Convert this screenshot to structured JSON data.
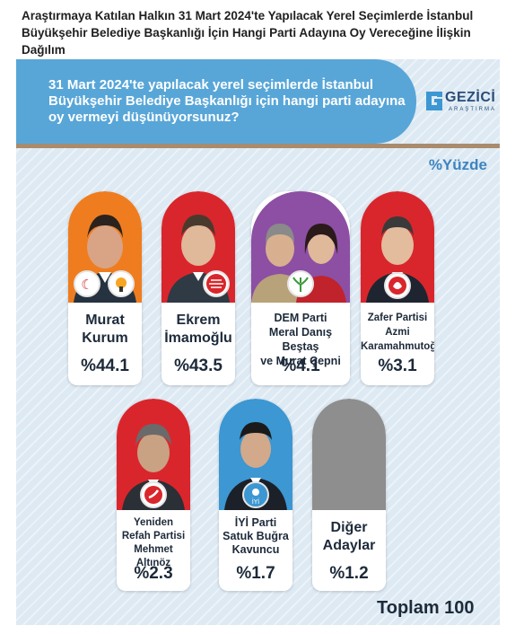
{
  "header": {
    "title": "Araştırmaya Katılan Halkın 31 Mart 2024'te Yapılacak Yerel Seçimlerde İstanbul Büyükşehir Belediye Başkanlığı İçin Hangi Parti Adayına Oy Vereceğine İlişkin Dağılım"
  },
  "question": "31 Mart 2024'te yapılacak yerel seçimlerde İstanbul Büyükşehir Belediye Başkanlığı için hangi parti adayına oy vermeyi düşünüyorsunuz?",
  "logo": {
    "name": "GEZİCİ",
    "sub": "ARAŞTIRMA"
  },
  "unit_label": "%Yüzde",
  "total_label": "Toplam 100",
  "colors": {
    "orange": "#ef7d1f",
    "red": "#d9262c",
    "purple": "#8c4fa3",
    "blue": "#3c97d3",
    "gray": "#8e8e8e",
    "header_blue": "#58a6d8"
  },
  "chart_data": {
    "type": "bar",
    "title": "31 Mart 2024'te yapılacak yerel seçimlerde İstanbul Büyükşehir Belediye Başkanlığı için hangi parti adayına oy vermeyi düşünüyorsunuz?",
    "unit": "%Yüzde",
    "candidates": [
      {
        "party": "",
        "name": "Murat Kurum",
        "line1": "Murat",
        "line2": "Kurum",
        "line3": "",
        "value": 44.1,
        "value_label": "%44.1",
        "color": "orange"
      },
      {
        "party": "",
        "name": "Ekrem İmamoğlu",
        "line1": "Ekrem",
        "line2": "İmamoğlu",
        "line3": "",
        "value": 43.5,
        "value_label": "%43.5",
        "color": "red"
      },
      {
        "party": "DEM Parti",
        "name": "Meral Danış Beştaş ve Murat Çepni",
        "line1": "DEM Parti",
        "line2": "Meral Danış Beştaş",
        "line3": "ve Murat Çepni",
        "value": 4.1,
        "value_label": "%4.1",
        "color": "purple"
      },
      {
        "party": "Zafer Partisi",
        "name": "Azmi Karamahmutoğlu",
        "line1": "Zafer Partisi",
        "line2": "Azmi",
        "line3": "Karamahmutoğlu",
        "value": 3.1,
        "value_label": "%3.1",
        "color": "red"
      },
      {
        "party": "Yeniden Refah Partisi",
        "name": "Mehmet Altınöz",
        "line1": "Yeniden",
        "line2": "Refah Partisi",
        "line3": "Mehmet Altınöz",
        "value": 2.3,
        "value_label": "%2.3",
        "color": "red"
      },
      {
        "party": "İYİ Parti",
        "name": "Satuk Buğra Kavuncu",
        "line1": "İYİ Parti",
        "line2": "Satuk Buğra",
        "line3": "Kavuncu",
        "value": 1.7,
        "value_label": "%1.7",
        "color": "blue"
      },
      {
        "party": "",
        "name": "Diğer Adaylar",
        "line1": "Diğer",
        "line2": "Adaylar",
        "line3": "",
        "value": 1.2,
        "value_label": "%1.2",
        "color": "gray"
      }
    ],
    "total": 100
  }
}
